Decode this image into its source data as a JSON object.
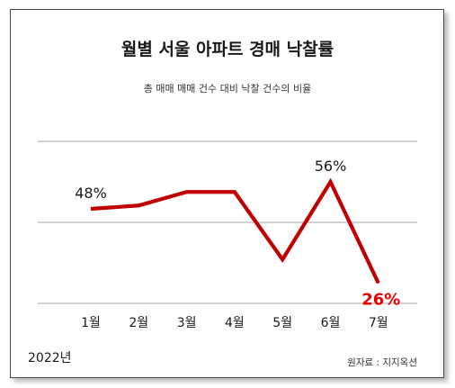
{
  "chart_data": {
    "type": "line",
    "title": "월별 서울 아파트 경매 낙찰률",
    "subtitle": "총 매매 매매 건수 대비 낙찰 건수의 비율",
    "categories": [
      "1월",
      "2월",
      "3월",
      "4월",
      "5월",
      "6월",
      "7월"
    ],
    "values": [
      48,
      49,
      53,
      53,
      33,
      56,
      26
    ],
    "data_labels": [
      {
        "index": 0,
        "text": "48%"
      },
      {
        "index": 5,
        "text": "56%"
      },
      {
        "index": 6,
        "text": "26%"
      }
    ],
    "ylim": [
      20,
      68
    ],
    "gridlines": [
      20,
      44,
      68
    ],
    "grid": true,
    "legend": "none",
    "year_label": "2022년",
    "source": "원자료 : 지지옥션",
    "colors": {
      "line": "#c00000",
      "highlight_label": "#ee0000",
      "gridline": "#a6a6a6",
      "text": "#1a1a1a"
    }
  }
}
